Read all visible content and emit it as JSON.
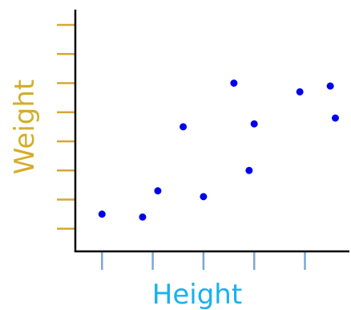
{
  "chart_data": {
    "type": "scatter",
    "xlabel": "Height",
    "ylabel": "Weight",
    "x_ticks": [
      1,
      2,
      3,
      4,
      5,
      6
    ],
    "y_ticks": [
      1,
      2,
      3,
      4,
      5,
      6,
      7,
      8
    ],
    "xlim": [
      0,
      6.5
    ],
    "ylim": [
      0,
      8.5
    ],
    "points": [
      {
        "x": 1.0,
        "y": 1.5
      },
      {
        "x": 1.8,
        "y": 1.4
      },
      {
        "x": 2.1,
        "y": 2.3
      },
      {
        "x": 2.6,
        "y": 4.5
      },
      {
        "x": 3.0,
        "y": 2.1
      },
      {
        "x": 3.6,
        "y": 6.0
      },
      {
        "x": 3.9,
        "y": 3.0
      },
      {
        "x": 4.0,
        "y": 4.6
      },
      {
        "x": 4.9,
        "y": 5.7
      },
      {
        "x": 5.5,
        "y": 5.9
      },
      {
        "x": 5.6,
        "y": 4.8
      }
    ],
    "grid": false,
    "colors": {
      "points": "#0000ee",
      "x_ticks": "#7ca6d6",
      "y_ticks": "#d4a73a",
      "xlabel": "#1ab0f0",
      "ylabel": "#d4ad2a",
      "axes": "#000000"
    }
  }
}
